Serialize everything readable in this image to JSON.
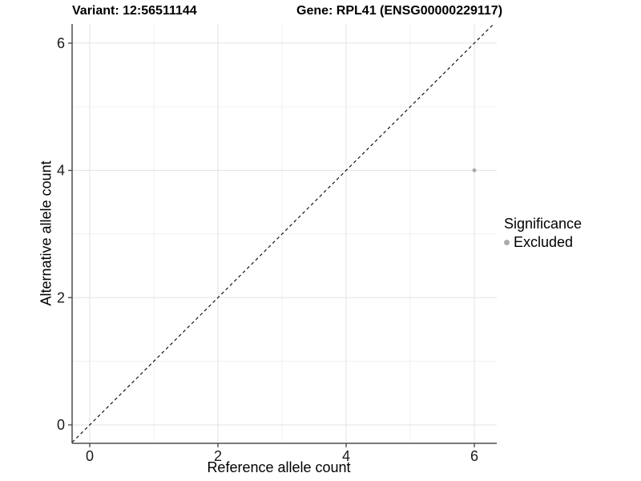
{
  "titles": {
    "variant": "Variant: 12:56511144",
    "gene": "Gene: RPL41 (ENSG00000229117)"
  },
  "chart_data": {
    "type": "scatter",
    "xlabel": "Reference allele count",
    "ylabel": "Alternative allele count",
    "xlim": [
      -0.275,
      6.35
    ],
    "ylim": [
      -0.29,
      6.3
    ],
    "x_major_ticks": [
      0,
      2,
      4,
      6
    ],
    "y_major_ticks": [
      0,
      2,
      4,
      6
    ],
    "x_minor_ticks": [
      1,
      3,
      5
    ],
    "y_minor_ticks": [
      1,
      3,
      5
    ],
    "grid": "major and minor gridlines on, no top/right border",
    "identity_line": {
      "type": "dashed",
      "slope": 1,
      "intercept": 0,
      "color": "#000000"
    },
    "series": [
      {
        "name": "Excluded",
        "color": "#ababab",
        "points": [
          {
            "x": 6,
            "y": 4
          }
        ]
      }
    ],
    "legend": {
      "title": "Significance",
      "position": "right",
      "entries": [
        {
          "label": "Excluded",
          "color": "#ababab"
        }
      ]
    },
    "colors": {
      "axis_line": "#4d4d4d",
      "major_grid": "#e3e3e3",
      "minor_grid": "#f0f0f0",
      "tick_text": "#1a1a1a",
      "point": "#ababab",
      "background": "#ffffff"
    }
  }
}
